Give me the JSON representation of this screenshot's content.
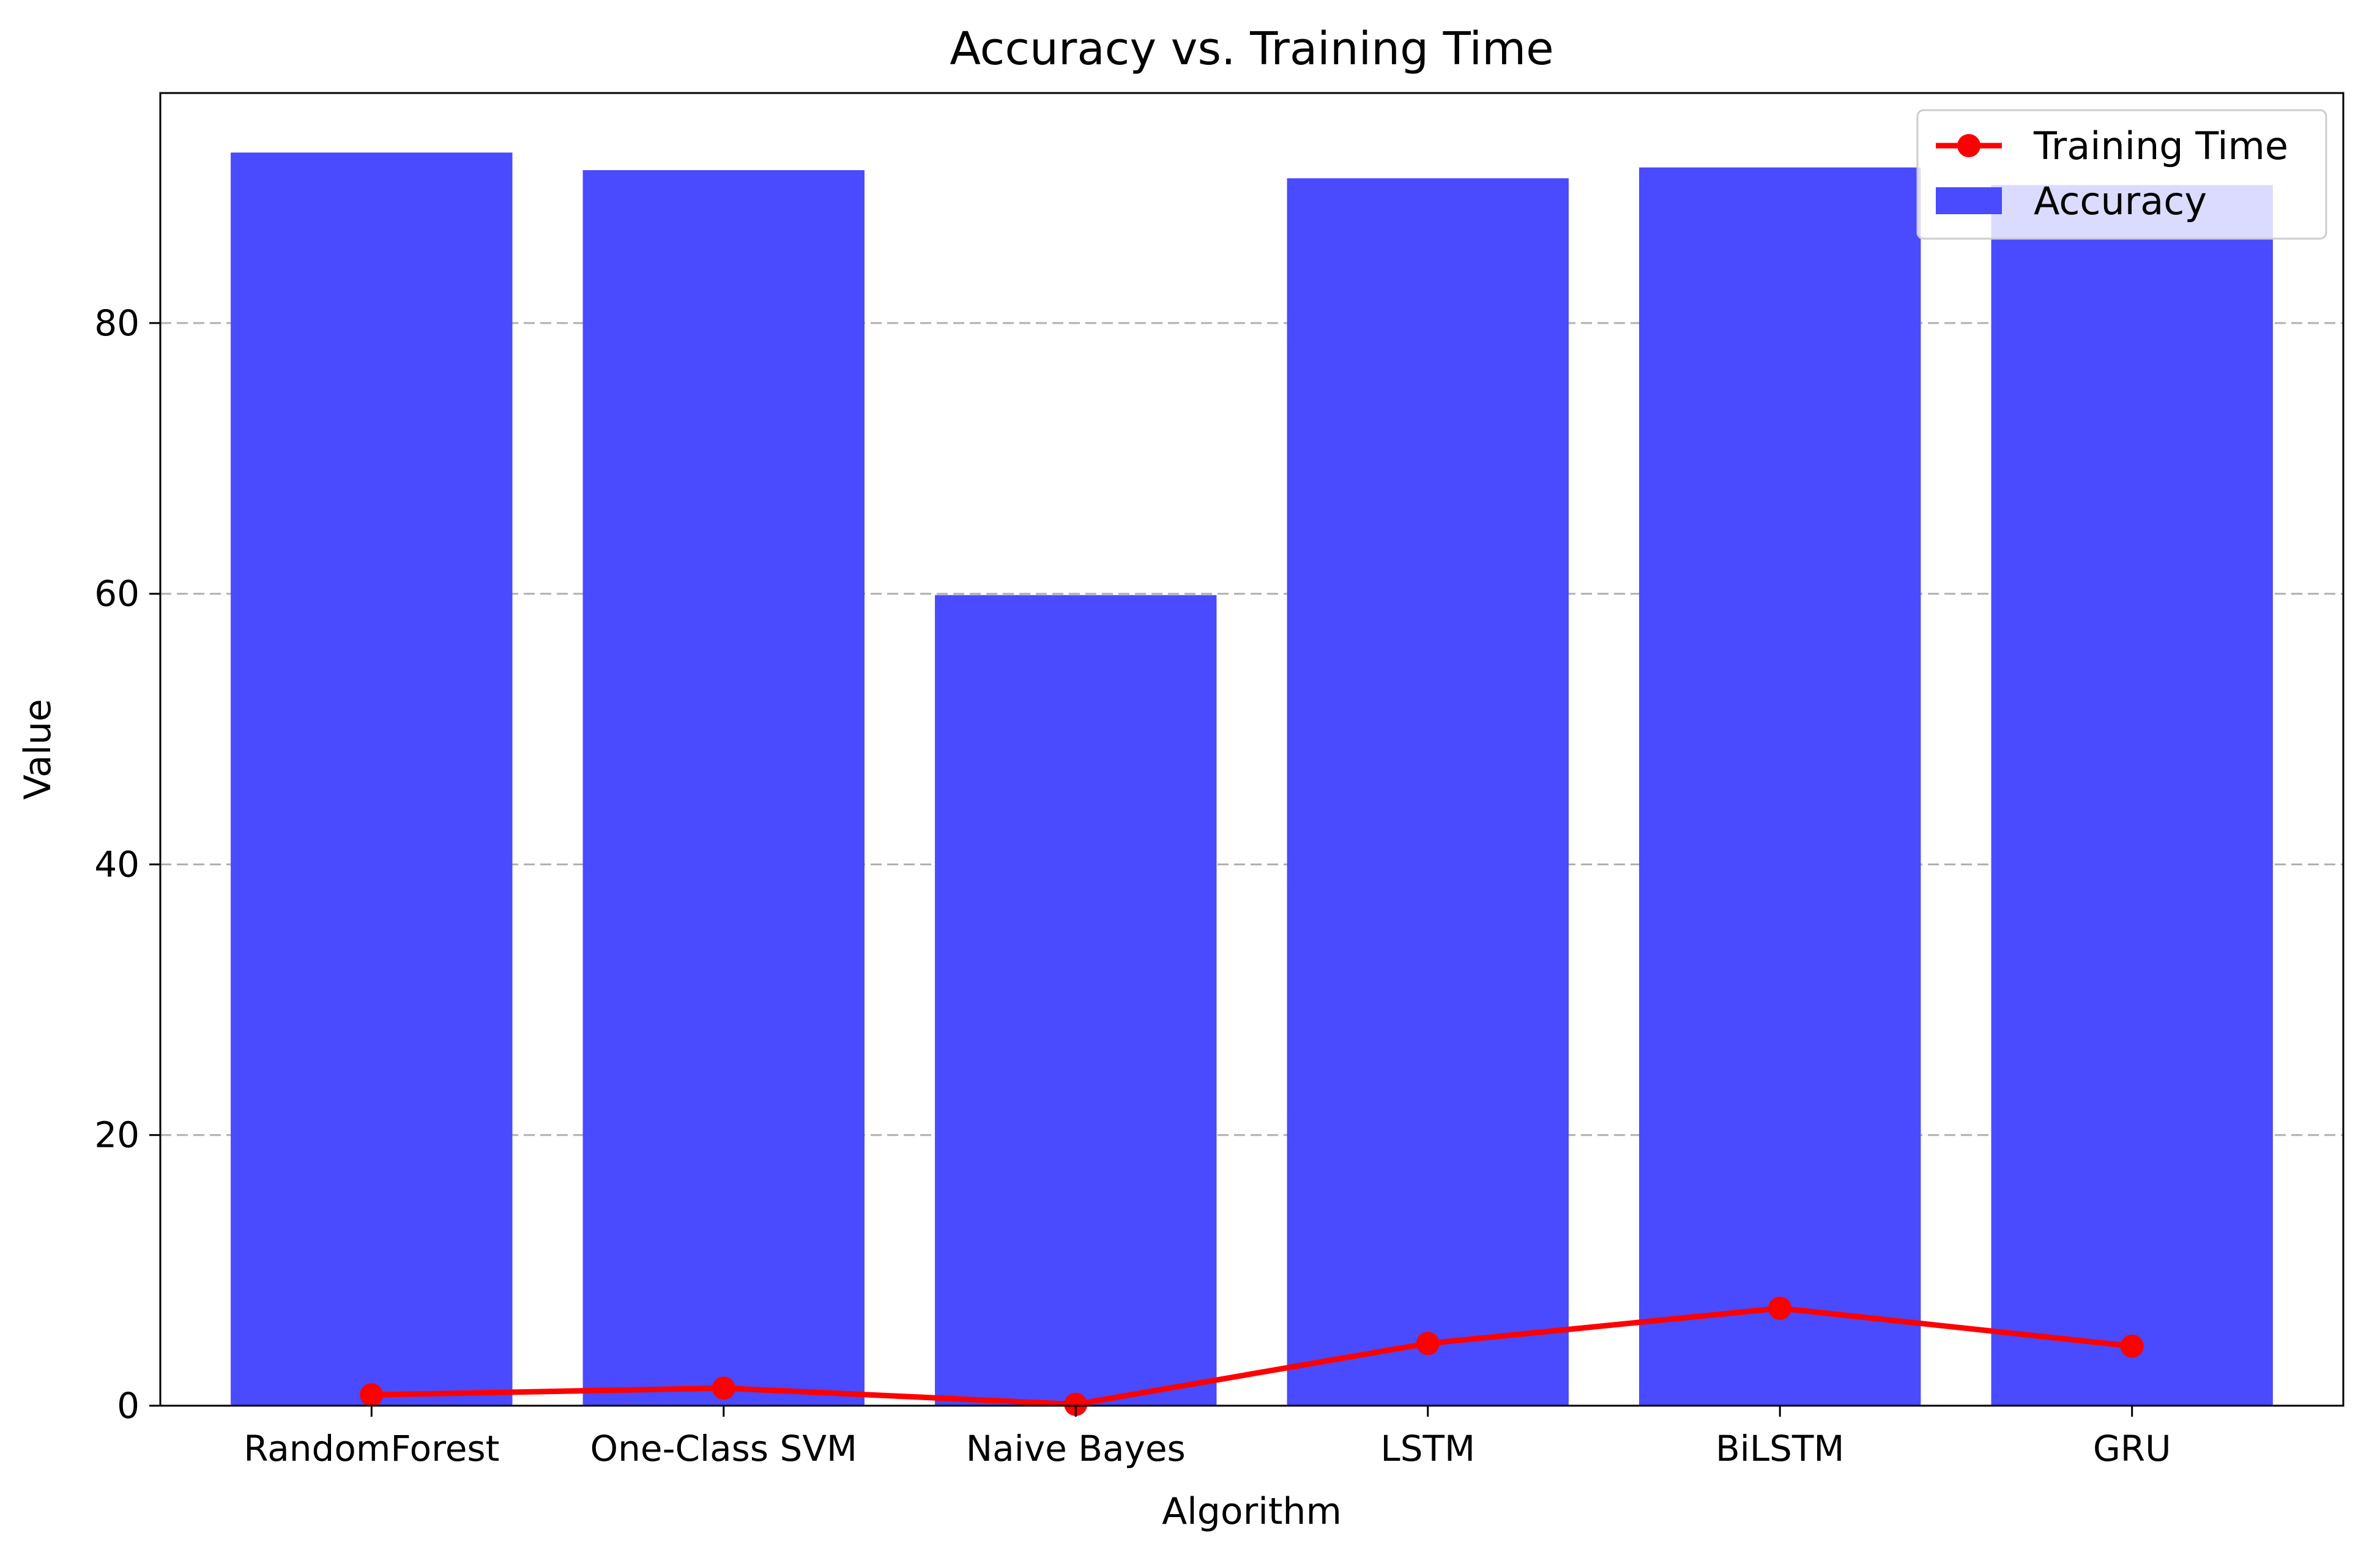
{
  "chart_data": {
    "type": "bar",
    "title": "Accuracy vs. Training Time",
    "xlabel": "Algorithm",
    "ylabel": "Value",
    "categories": [
      "RandomForest",
      "One-Class SVM",
      "Naive Bayes",
      "LSTM",
      "BiLSTM",
      "GRU"
    ],
    "series": [
      {
        "name": "Accuracy",
        "type": "bar",
        "color": "#4a4aff",
        "values": [
          92.6,
          91.3,
          59.9,
          90.7,
          91.5,
          90.2
        ]
      },
      {
        "name": "Training Time",
        "type": "line",
        "color": "#ff0000",
        "values": [
          0.8,
          1.3,
          0.1,
          4.6,
          7.2,
          4.4
        ]
      }
    ],
    "ylim": [
      0,
      97
    ],
    "yticks": [
      0,
      20,
      40,
      60,
      80
    ],
    "grid": {
      "axis": "y",
      "style": "dashed"
    },
    "legend": {
      "position": "top-right",
      "entries": [
        "Training Time",
        "Accuracy"
      ]
    }
  }
}
